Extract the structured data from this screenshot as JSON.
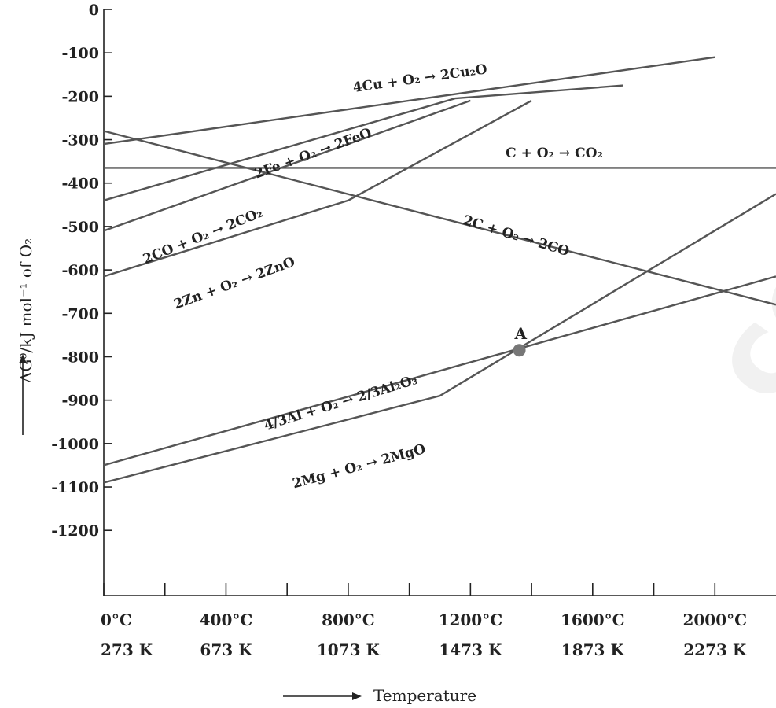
{
  "chart_data": {
    "type": "line",
    "title": "",
    "xlabel": "Temperature",
    "ylabel": "ΔG⁰/kJ mol⁻¹ of O₂",
    "xlim": [
      273,
      2473
    ],
    "ylim": [
      -1350,
      0
    ],
    "y_ticks": [
      0,
      -100,
      -200,
      -300,
      -400,
      -500,
      -600,
      -700,
      -800,
      -900,
      -1000,
      -1100,
      -1200
    ],
    "x_ticks": [
      {
        "value": 273,
        "celsius": "0°C",
        "kelvin": "273 K"
      },
      {
        "value": 673,
        "celsius": "400°C",
        "kelvin": "673 K"
      },
      {
        "value": 1073,
        "celsius": "800°C",
        "kelvin": "1073 K"
      },
      {
        "value": 1473,
        "celsius": "1200°C",
        "kelvin": "1473 K"
      },
      {
        "value": 1873,
        "celsius": "1600°C",
        "kelvin": "1873 K"
      },
      {
        "value": 2273,
        "celsius": "2000°C",
        "kelvin": "2273 K"
      }
    ],
    "minor_x_ticks": [
      473,
      873,
      1273,
      1673,
      2073
    ],
    "grid": false,
    "series": [
      {
        "name": "4Cu + O₂ → 2Cu₂O",
        "points": [
          [
            273,
            -310
          ],
          [
            2273,
            -110
          ]
        ]
      },
      {
        "name": "2Fe + O₂ → 2FeO",
        "points": [
          [
            273,
            -510
          ],
          [
            1473,
            -210
          ]
        ]
      },
      {
        "name": "C + O₂ → CO₂",
        "points": [
          [
            273,
            -365
          ],
          [
            2473,
            -365
          ]
        ]
      },
      {
        "name": "2C + O₂ → 2CO",
        "points": [
          [
            273,
            -280
          ],
          [
            2473,
            -680
          ]
        ]
      },
      {
        "name": "2CO + O₂ → 2CO₂",
        "points": [
          [
            273,
            -440
          ],
          [
            1423,
            -205
          ],
          [
            1973,
            -175
          ]
        ]
      },
      {
        "name": "2Zn + O₂ → 2ZnO",
        "points": [
          [
            273,
            -615
          ],
          [
            1073,
            -440
          ],
          [
            1673,
            -210
          ]
        ]
      },
      {
        "name": "4/3Al + O₂ → 2/3Al₂O₃",
        "points": [
          [
            273,
            -1050
          ],
          [
            2473,
            -615
          ]
        ]
      },
      {
        "name": "2Mg + O₂ → 2MgO",
        "points": [
          [
            273,
            -1090
          ],
          [
            1373,
            -890
          ],
          [
            2473,
            -425
          ]
        ]
      }
    ],
    "annotations": [
      {
        "text": "A",
        "x": 1633,
        "y": -785
      }
    ]
  }
}
